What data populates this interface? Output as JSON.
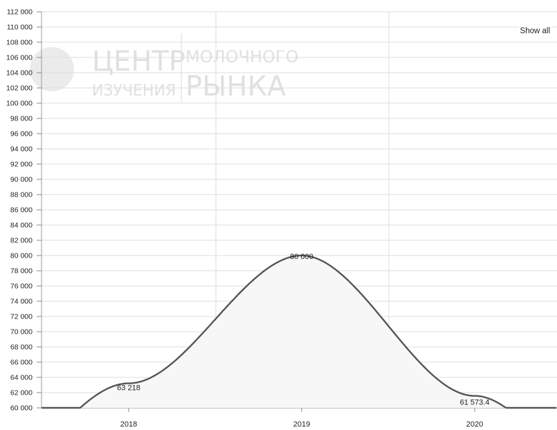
{
  "controls": {
    "show_all_label": "Show all"
  },
  "colors": {
    "line": "#555555",
    "grid": "#dddddd",
    "area": "#f7f7f7"
  },
  "watermark": {
    "line1a": "ЦЕНТР",
    "line1b": "МОЛОЧНОГО",
    "line2a": "ИЗУЧЕНИЯ",
    "line2b": "РЫНКА"
  },
  "chart_data": {
    "type": "area",
    "categories": [
      "2018",
      "2019",
      "2020"
    ],
    "series": [
      {
        "values": [
          63218,
          80000,
          61573.4
        ]
      }
    ],
    "data_labels": [
      "63 218",
      "80 000",
      "61 573.4"
    ],
    "ylim": [
      60000,
      112000
    ],
    "ytick_step": 2000,
    "ytick_labels": [
      "60 000",
      "62 000",
      "64 000",
      "66 000",
      "68 000",
      "70 000",
      "72 000",
      "74 000",
      "76 000",
      "78 000",
      "80 000",
      "82 000",
      "84 000",
      "86 000",
      "88 000",
      "90 000",
      "92 000",
      "94 000",
      "96 000",
      "98 000",
      "100 000",
      "102 000",
      "104 000",
      "106 000",
      "108 000",
      "110 000",
      "112 000"
    ],
    "grid": true,
    "title": "",
    "xlabel": "",
    "ylabel": ""
  }
}
